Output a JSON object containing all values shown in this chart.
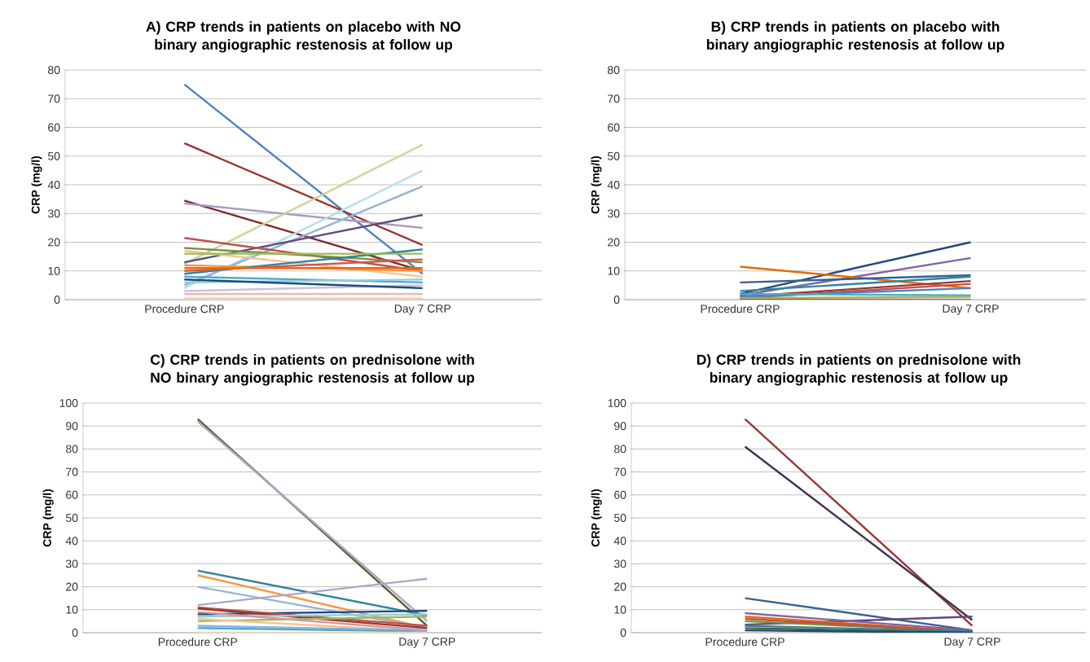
{
  "chart_data": [
    {
      "type": "line",
      "title": "A) CRP trends in patients on placebo with NO binary angiographic restenosis at follow up",
      "ylabel": "CRP (mg/l)",
      "categories": [
        "Procedure CRP",
        "Day 7 CRP"
      ],
      "ylim": [
        0,
        80
      ],
      "yticks": [
        0,
        10,
        20,
        30,
        40,
        50,
        60,
        70,
        80
      ],
      "grid": "y",
      "series": [
        {
          "color": "#4f81bd",
          "values": [
            75,
            9
          ]
        },
        {
          "color": "#953735",
          "values": [
            54.5,
            19
          ]
        },
        {
          "color": "#7f2a2a",
          "values": [
            34.5,
            10
          ]
        },
        {
          "color": "#a89bc2",
          "values": [
            33.5,
            25
          ]
        },
        {
          "color": "#c3d69b",
          "values": [
            12.5,
            54
          ]
        },
        {
          "color": "#b7dee8",
          "values": [
            4,
            45
          ]
        },
        {
          "color": "#95b3d7",
          "values": [
            5,
            39.5
          ]
        },
        {
          "color": "#604a7b",
          "values": [
            13,
            29.5
          ]
        },
        {
          "color": "#c0504d",
          "values": [
            21.5,
            10
          ]
        },
        {
          "color": "#77933c",
          "values": [
            18,
            13
          ]
        },
        {
          "color": "#fac090",
          "values": [
            17,
            8
          ]
        },
        {
          "color": "#f79646",
          "values": [
            12,
            10
          ]
        },
        {
          "color": "#31859c",
          "values": [
            9,
            17.5
          ]
        },
        {
          "color": "#9bbb59",
          "values": [
            16,
            16
          ]
        },
        {
          "color": "#d9534f",
          "values": [
            10,
            14
          ]
        },
        {
          "color": "#e46c0a",
          "values": [
            11,
            11
          ]
        },
        {
          "color": "#4bacc6",
          "values": [
            8,
            6
          ]
        },
        {
          "color": "#93cddd",
          "values": [
            6,
            7
          ]
        },
        {
          "color": "#ccc1da",
          "values": [
            3,
            5
          ]
        },
        {
          "color": "#1f497d",
          "values": [
            7,
            4
          ]
        },
        {
          "color": "#e6b9b8",
          "values": [
            2,
            2
          ]
        },
        {
          "color": "#fcd5b5",
          "values": [
            0.5,
            0.5
          ]
        }
      ]
    },
    {
      "type": "line",
      "title": "B) CRP trends in patients on placebo with binary angiographic restenosis at follow up",
      "ylabel": "CRP (mg/l)",
      "categories": [
        "Procedure CRP",
        "Day 7 CRP"
      ],
      "ylim": [
        0,
        80
      ],
      "yticks": [
        0,
        10,
        20,
        30,
        40,
        50,
        60,
        70,
        80
      ],
      "grid": "y",
      "series": [
        {
          "color": "#1f497d",
          "values": [
            2,
            20
          ]
        },
        {
          "color": "#8064a2",
          "values": [
            1.5,
            14.5
          ]
        },
        {
          "color": "#e46c0a",
          "values": [
            11.5,
            4
          ]
        },
        {
          "color": "#376092",
          "values": [
            6,
            8.5
          ]
        },
        {
          "color": "#31859c",
          "values": [
            3,
            8
          ]
        },
        {
          "color": "#953735",
          "values": [
            1,
            6.5
          ]
        },
        {
          "color": "#c0504d",
          "values": [
            0.5,
            5.5
          ]
        },
        {
          "color": "#4f81bd",
          "values": [
            1,
            4
          ]
        },
        {
          "color": "#4bacc6",
          "values": [
            2,
            1.5
          ]
        },
        {
          "color": "#9bbb59",
          "values": [
            0.5,
            1
          ]
        },
        {
          "color": "#c0504d",
          "values": [
            0,
            0
          ]
        }
      ]
    },
    {
      "type": "line",
      "title": "C) CRP trends in patients on prednisolone with NO binary angiographic restenosis at follow up",
      "ylabel": "CRP (mg/l)",
      "categories": [
        "Procedure CRP",
        "Day 7 CRP"
      ],
      "ylim": [
        0,
        100
      ],
      "yticks": [
        0,
        10,
        20,
        30,
        40,
        50,
        60,
        70,
        80,
        90,
        100
      ],
      "grid": "y",
      "series": [
        {
          "color": "#4f6228",
          "values": [
            93,
            3
          ]
        },
        {
          "color": "#b3a2c7",
          "values": [
            92,
            5
          ]
        },
        {
          "color": "#31859c",
          "values": [
            27,
            7.5
          ]
        },
        {
          "color": "#f79646",
          "values": [
            25,
            2
          ]
        },
        {
          "color": "#95b3d7",
          "values": [
            20,
            2
          ]
        },
        {
          "color": "#b3a2c7",
          "values": [
            12,
            23.5
          ]
        },
        {
          "color": "#1f497d",
          "values": [
            8,
            9.5
          ]
        },
        {
          "color": "#c0504d",
          "values": [
            11,
            3
          ]
        },
        {
          "color": "#953735",
          "values": [
            10.5,
            2
          ]
        },
        {
          "color": "#9bbb59",
          "values": [
            5,
            7
          ]
        },
        {
          "color": "#93cddd",
          "values": [
            7,
            8
          ]
        },
        {
          "color": "#d99694",
          "values": [
            9,
            1
          ]
        },
        {
          "color": "#fac090",
          "values": [
            6,
            0.5
          ]
        },
        {
          "color": "#8eb4e3",
          "values": [
            3,
            1
          ]
        },
        {
          "color": "#4bacc6",
          "values": [
            2,
            0.5
          ]
        },
        {
          "color": "#fcd5b5",
          "values": [
            0,
            0
          ]
        }
      ]
    },
    {
      "type": "line",
      "title": "D) CRP trends in patients on prednisolone with binary angiographic restenosis at follow up",
      "ylabel": "CRP (mg/l)",
      "categories": [
        "Procedure CRP",
        "Day 7 CRP"
      ],
      "ylim": [
        0,
        100
      ],
      "yticks": [
        0,
        10,
        20,
        30,
        40,
        50,
        60,
        70,
        80,
        90,
        100
      ],
      "grid": "y",
      "series": [
        {
          "color": "#953735",
          "values": [
            93,
            3
          ]
        },
        {
          "color": "#403152",
          "values": [
            81,
            5.5
          ]
        },
        {
          "color": "#376092",
          "values": [
            15,
            1
          ]
        },
        {
          "color": "#604a7b",
          "values": [
            3.5,
            7
          ]
        },
        {
          "color": "#8064a2",
          "values": [
            8.5,
            1
          ]
        },
        {
          "color": "#e46c0a",
          "values": [
            7,
            0.5
          ]
        },
        {
          "color": "#77933c",
          "values": [
            5,
            0.5
          ]
        },
        {
          "color": "#c0504d",
          "values": [
            6,
            0.5
          ]
        },
        {
          "color": "#31859c",
          "values": [
            3,
            0.5
          ]
        },
        {
          "color": "#4f6228",
          "values": [
            2,
            0
          ]
        },
        {
          "color": "#1f497d",
          "values": [
            1,
            0
          ]
        }
      ]
    }
  ]
}
